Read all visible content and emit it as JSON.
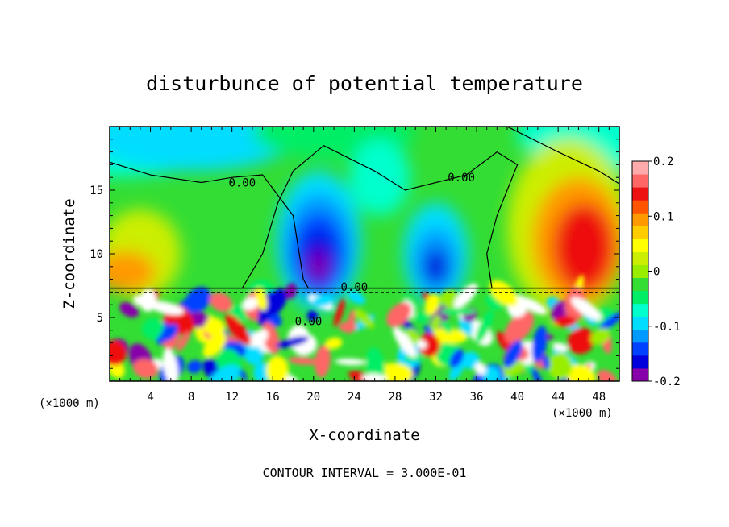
{
  "chart_data": {
    "type": "heatmap",
    "title": "disturbunce of potential temperature",
    "xlabel": "X-coordinate",
    "ylabel": "Z-coordinate",
    "x_unit": "(×1000 m)",
    "z_unit": "(×1000 m)",
    "xlim": [
      0,
      50
    ],
    "ylim": [
      0,
      20
    ],
    "x_ticks": [
      4,
      8,
      12,
      16,
      20,
      24,
      28,
      32,
      36,
      40,
      44,
      48
    ],
    "y_ticks": [
      5,
      10,
      15
    ],
    "colorbar": {
      "range": [
        -0.2,
        0.2
      ],
      "tick_values": [
        0.2,
        0.1,
        0,
        -0.1,
        -0.2
      ],
      "tick_labels": [
        "0.2",
        "0.1",
        "0",
        "-0.1",
        "-0.2"
      ],
      "colors": [
        "#8800aa",
        "#0000dd",
        "#0040ff",
        "#0099ff",
        "#00ddff",
        "#00ffcc",
        "#00ee66",
        "#33dd33",
        "#99ee00",
        "#ccee00",
        "#ffff00",
        "#ffcc00",
        "#ff9900",
        "#ff5500",
        "#ee1111",
        "#ff6666",
        "#ffaaaa"
      ]
    },
    "contour_labels": [
      {
        "text": "0.00",
        "x": 13.0,
        "z": 15.6
      },
      {
        "text": "0.00",
        "x": 34.5,
        "z": 16.0
      },
      {
        "text": "0.00",
        "x": 24.0,
        "z": 7.4
      },
      {
        "text": "0.00",
        "x": 19.5,
        "z": 4.7
      }
    ],
    "footer": "CONTOUR INTERVAL = 3.000E-01"
  }
}
